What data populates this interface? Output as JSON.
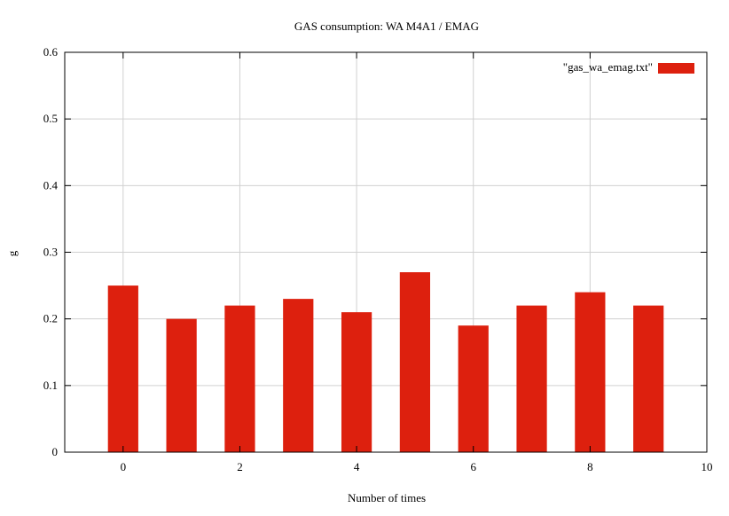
{
  "chart_data": {
    "type": "bar",
    "title": "GAS consumption: WA M4A1 / EMAG",
    "xlabel": "Number of times",
    "ylabel": "g",
    "x": [
      0,
      1,
      2,
      3,
      4,
      5,
      6,
      7,
      8,
      9
    ],
    "series": [
      {
        "name": "\"gas_wa_emag.txt\"",
        "values": [
          0.25,
          0.2,
          0.22,
          0.23,
          0.21,
          0.27,
          0.19,
          0.22,
          0.24,
          0.22
        ],
        "color": "#dd200e"
      }
    ],
    "xlim": [
      -1,
      10
    ],
    "ylim": [
      0,
      0.6
    ],
    "xticks": [
      "0",
      "2",
      "4",
      "6",
      "8",
      "10"
    ],
    "yticks": [
      "0",
      "0.1",
      "0.2",
      "0.3",
      "0.4",
      "0.5",
      "0.6"
    ],
    "grid": true,
    "legend_position": "top-right"
  }
}
